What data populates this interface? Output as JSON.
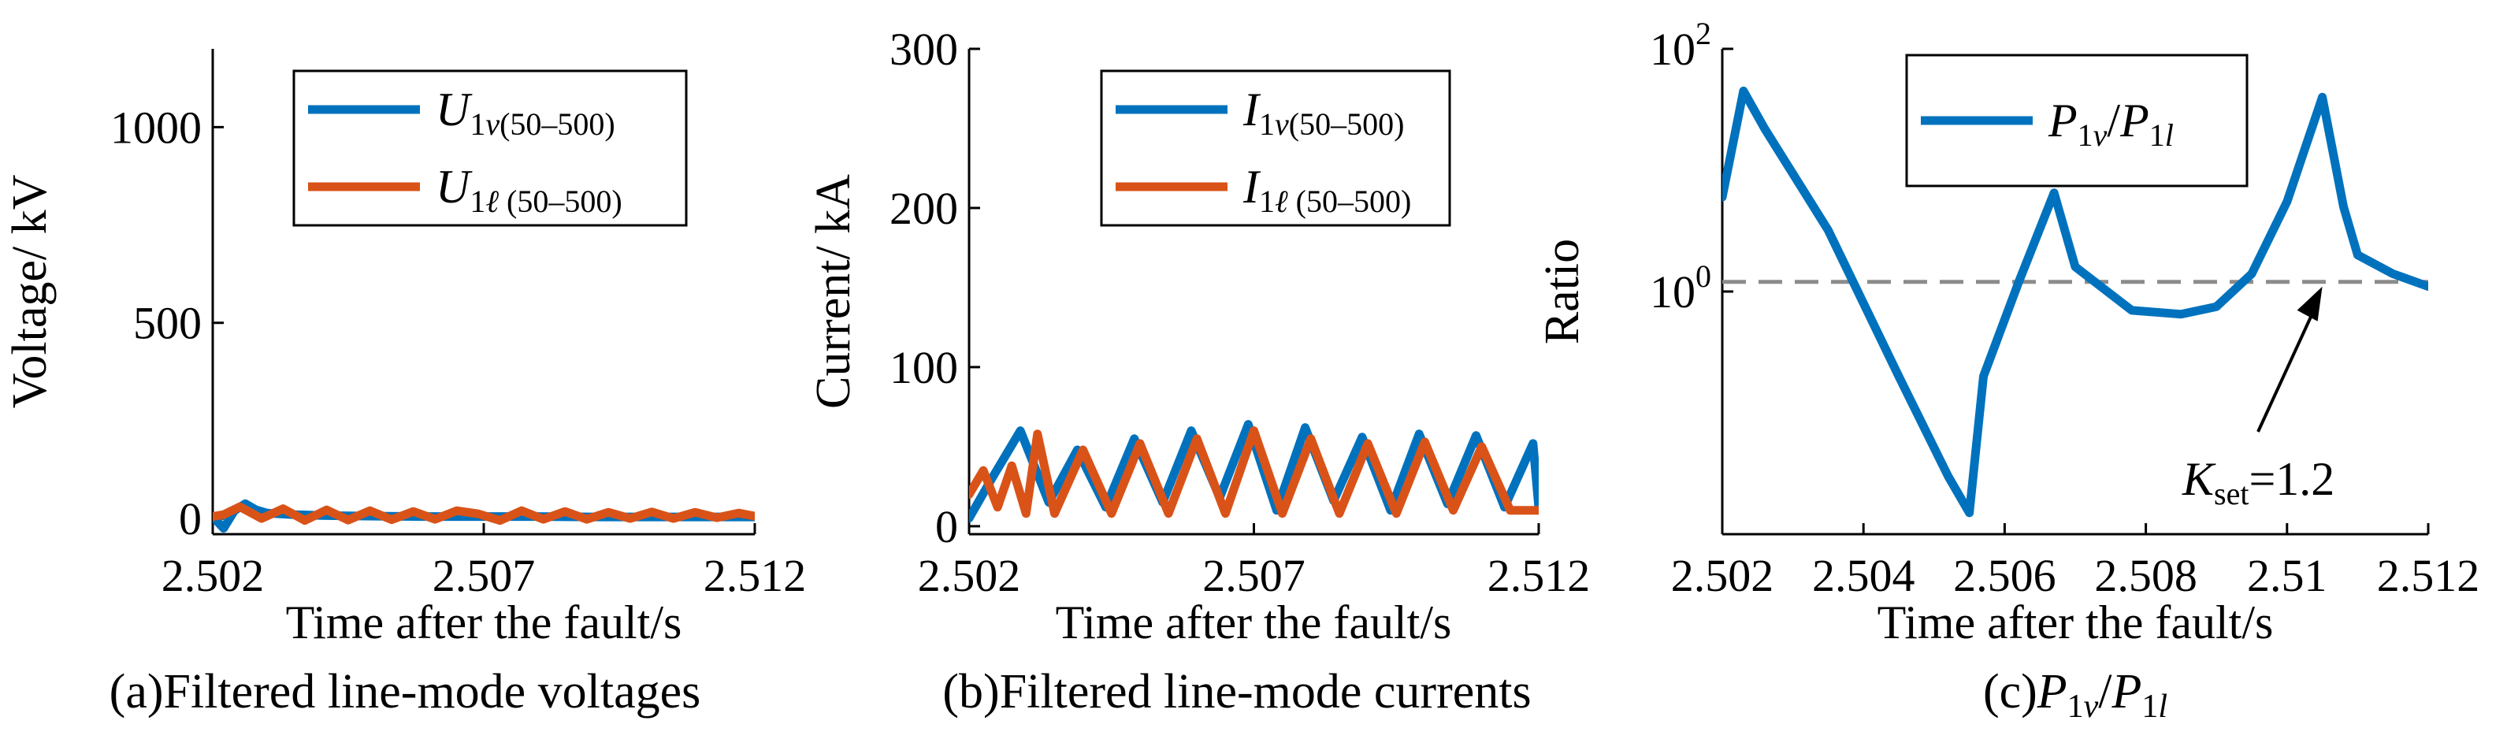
{
  "colors": {
    "blue": "#0072BD",
    "orange": "#D95319",
    "threshold": "#8C8C8C"
  },
  "panels": [
    {
      "caption": "(a)Filtered line-mode voltages",
      "xlabel": "Time after the fault/s",
      "ylabel": "Voltage/ kV",
      "legend": [
        {
          "main": "U",
          "sub": "1",
          "subItalic": "v",
          "subRest": "(50–500)"
        },
        {
          "main": "U",
          "sub": "1",
          "subItalic": "ℓ",
          "subRest": " (50–500)"
        }
      ]
    },
    {
      "caption": "(b)Filtered line-mode currents",
      "xlabel": "Time after the fault/s",
      "ylabel": "Current/ kA",
      "legend": [
        {
          "main": "I",
          "sub": "1",
          "subItalic": "v",
          "subRest": "(50–500)"
        },
        {
          "main": "I",
          "sub": "1",
          "subItalic": "ℓ",
          "subRest": " (50–500)"
        }
      ]
    },
    {
      "caption": "(c)P1v/P1l",
      "xlabel": "Time after the fault/s",
      "ylabel": "Ratio",
      "legend": [
        {
          "text": "P1v/P1l"
        }
      ],
      "annotation": "Kset=1.2"
    }
  ],
  "chart_data": [
    {
      "type": "line",
      "xlim": [
        2.502,
        2.512
      ],
      "ylim": [
        -40,
        1200
      ],
      "xticks": [
        2.502,
        2.507,
        2.512
      ],
      "yticks": [
        0,
        500,
        1000
      ],
      "grid": false,
      "legend_position": "top-right",
      "series": [
        {
          "name": "U1v(50–500)",
          "color": "blue",
          "x": [
            2.502,
            2.5022,
            2.5024,
            2.5026,
            2.5028,
            2.503,
            2.5035,
            2.504,
            2.5045,
            2.505,
            2.506,
            2.507,
            2.508,
            2.509,
            2.51,
            2.511,
            2.512
          ],
          "y": [
            5,
            -25,
            20,
            38,
            22,
            14,
            10,
            8,
            7,
            6,
            5,
            5,
            5,
            4,
            4,
            4,
            4
          ]
        },
        {
          "name": "U1ℓ (50–500)",
          "color": "orange",
          "x": [
            2.502,
            2.5022,
            2.5025,
            2.5029,
            2.5033,
            2.5037,
            2.5041,
            2.5045,
            2.5049,
            2.5053,
            2.5057,
            2.5061,
            2.5065,
            2.5069,
            2.5073,
            2.5077,
            2.5081,
            2.5085,
            2.5089,
            2.5093,
            2.5097,
            2.5101,
            2.5105,
            2.5109,
            2.5113,
            2.5117,
            2.512
          ],
          "y": [
            5,
            10,
            30,
            0,
            25,
            -5,
            22,
            -4,
            20,
            -3,
            18,
            -2,
            20,
            12,
            -5,
            20,
            -2,
            18,
            -2,
            16,
            0,
            17,
            0,
            16,
            2,
            14,
            6
          ]
        }
      ]
    },
    {
      "type": "line",
      "xlim": [
        2.502,
        2.512
      ],
      "ylim": [
        -5,
        300
      ],
      "xticks": [
        2.502,
        2.507,
        2.512
      ],
      "yticks": [
        0,
        100,
        200,
        300
      ],
      "grid": false,
      "legend_position": "top-right",
      "series": [
        {
          "name": "I1v(50–500)",
          "color": "blue",
          "x": [
            2.502,
            2.5024,
            2.5029,
            2.5034,
            2.5039,
            2.5044,
            2.5049,
            2.5054,
            2.5059,
            2.5064,
            2.5069,
            2.5074,
            2.5079,
            2.5084,
            2.5089,
            2.5094,
            2.5099,
            2.5104,
            2.5109,
            2.5114,
            2.5119,
            2.512
          ],
          "y": [
            5,
            30,
            60,
            15,
            48,
            12,
            55,
            15,
            60,
            18,
            64,
            10,
            62,
            16,
            56,
            10,
            58,
            14,
            57,
            12,
            52,
            12
          ]
        },
        {
          "name": "I1ℓ (50–500)",
          "color": "orange",
          "x": [
            2.502,
            2.50225,
            2.5025,
            2.50275,
            2.503,
            2.5032,
            2.5035,
            2.504,
            2.5045,
            2.505,
            2.5055,
            2.506,
            2.5065,
            2.507,
            2.5075,
            2.508,
            2.5085,
            2.509,
            2.5095,
            2.51,
            2.5105,
            2.511,
            2.5115,
            2.512
          ],
          "y": [
            20,
            35,
            12,
            38,
            8,
            58,
            8,
            48,
            8,
            52,
            8,
            55,
            8,
            60,
            8,
            55,
            8,
            52,
            8,
            53,
            10,
            50,
            10,
            10
          ]
        }
      ]
    },
    {
      "type": "line",
      "yscale": "log",
      "xlim": [
        2.502,
        2.512
      ],
      "ylim": [
        0.01,
        100
      ],
      "xticks": [
        2.502,
        2.504,
        2.506,
        2.508,
        2.51,
        2.512
      ],
      "yticks": [
        1,
        100
      ],
      "grid": false,
      "legend_position": "top-right",
      "threshold": {
        "value": 1.2,
        "style": "dashed",
        "color": "threshold"
      },
      "series": [
        {
          "name": "P1v/P1l",
          "color": "blue",
          "x": [
            2.502,
            2.5023,
            2.5026,
            2.5035,
            2.5045,
            2.5052,
            2.5055,
            2.5057,
            2.5062,
            2.5067,
            2.507,
            2.5078,
            2.5085,
            2.509,
            2.5095,
            2.51,
            2.5105,
            2.5108,
            2.511,
            2.5115,
            2.512
          ],
          "y": [
            6,
            45,
            22,
            3.2,
            0.2,
            0.03,
            0.015,
            0.2,
            1.2,
            6.5,
            1.6,
            0.7,
            0.65,
            0.75,
            1.4,
            5.5,
            40,
            5,
            2,
            1.4,
            1.1
          ]
        }
      ]
    }
  ]
}
